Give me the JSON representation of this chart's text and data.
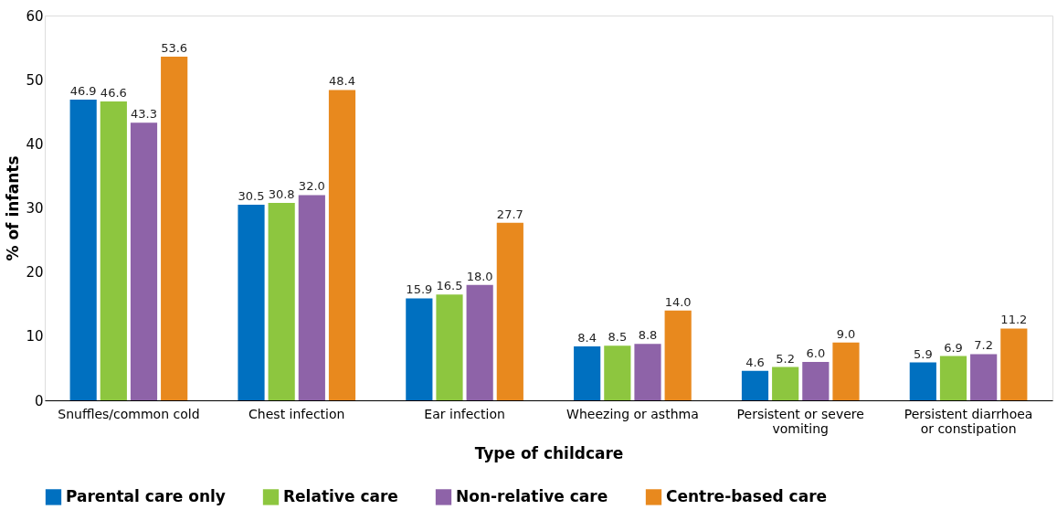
{
  "chart_data": {
    "type": "bar",
    "xlabel": "Type of childcare",
    "ylabel": "% of infants",
    "categories": [
      "Snuffles/common cold",
      "Chest infection",
      "Ear infection",
      "Wheezing or asthma",
      "Persistent or severe vomiting",
      "Persistent diarrhoea or constipation"
    ],
    "series": [
      {
        "name": "Parental care only",
        "color": "#0070c0",
        "values": [
          46.9,
          30.5,
          15.9,
          8.4,
          4.6,
          5.9
        ],
        "value_labels": [
          "46.9",
          "30.5",
          "15.9",
          "8.4",
          "4.6",
          "5.9"
        ]
      },
      {
        "name": "Relative care",
        "color": "#8dc63f",
        "values": [
          46.6,
          30.8,
          16.5,
          8.5,
          5.2,
          6.9
        ],
        "value_labels": [
          "46.6",
          "30.8",
          "16.5",
          "8.5",
          "5.2",
          "6.9"
        ]
      },
      {
        "name": "Non-relative care",
        "color": "#8e63a8",
        "values": [
          43.3,
          32.0,
          18.0,
          8.8,
          6.0,
          7.2
        ],
        "value_labels": [
          "43.3",
          "32.0",
          "18.0",
          "8.8",
          "6.0",
          "7.2"
        ]
      },
      {
        "name": "Centre-based care",
        "color": "#e8891e",
        "values": [
          53.6,
          48.4,
          27.7,
          14.0,
          9.0,
          11.2
        ],
        "value_labels": [
          "53.6",
          "48.4",
          "27.7",
          "14.0",
          "9.0",
          "11.2"
        ]
      }
    ],
    "ylim": [
      0,
      60
    ],
    "yticks": [
      0,
      10,
      20,
      30,
      40,
      50,
      60
    ],
    "grid": false,
    "legend": "bottom"
  }
}
